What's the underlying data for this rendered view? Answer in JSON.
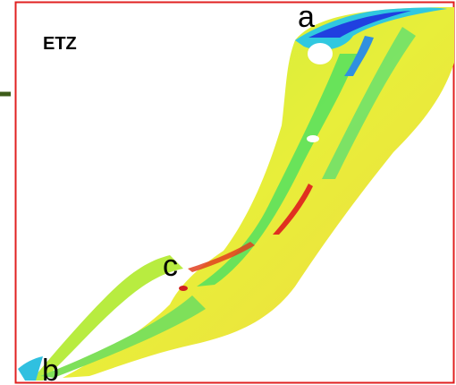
{
  "map": {
    "title": "ETZ",
    "markers": [
      "a",
      "b",
      "c"
    ]
  }
}
